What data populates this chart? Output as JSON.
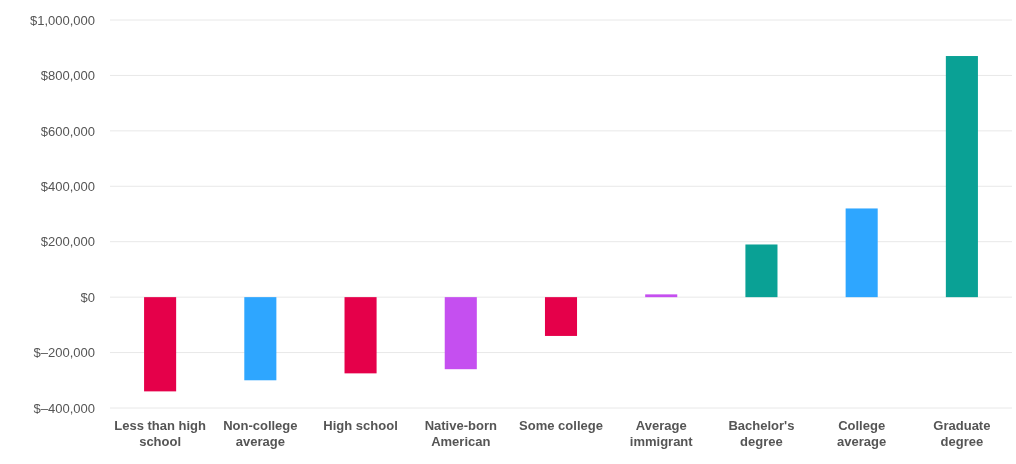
{
  "chart_data": {
    "type": "bar",
    "categories": [
      "Less than high school",
      "Non-college average",
      "High school",
      "Native-born American",
      "Some college",
      "Average immigrant",
      "Bachelor's degree",
      "College average",
      "Graduate degree"
    ],
    "values": [
      -340000,
      -300000,
      -275000,
      -260000,
      -140000,
      10000,
      190000,
      320000,
      870000
    ],
    "colors": [
      "#e5004a",
      "#2ea6ff",
      "#e5004a",
      "#c54ff0",
      "#e5004a",
      "#c54ff0",
      "#0aa195",
      "#2ea6ff",
      "#0aa195"
    ],
    "ylim": [
      -400000,
      1000000
    ],
    "yticks": [
      {
        "value": -400000,
        "label": "$–400,000"
      },
      {
        "value": -200000,
        "label": "$–200,000"
      },
      {
        "value": 0,
        "label": "$0"
      },
      {
        "value": 200000,
        "label": "$200,000"
      },
      {
        "value": 400000,
        "label": "$400,000"
      },
      {
        "value": 600000,
        "label": "$600,000"
      },
      {
        "value": 800000,
        "label": "$800,000"
      },
      {
        "value": 1000000,
        "label": "$1,000,000"
      }
    ],
    "grid": "y"
  }
}
